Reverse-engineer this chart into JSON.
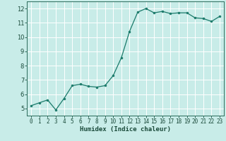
{
  "x": [
    0,
    1,
    2,
    3,
    4,
    5,
    6,
    7,
    8,
    9,
    10,
    11,
    12,
    13,
    14,
    15,
    16,
    17,
    18,
    19,
    20,
    21,
    22,
    23
  ],
  "y": [
    5.2,
    5.4,
    5.6,
    4.9,
    5.7,
    6.6,
    6.7,
    6.55,
    6.5,
    6.6,
    7.3,
    8.55,
    10.4,
    11.75,
    12.0,
    11.7,
    11.8,
    11.65,
    11.7,
    11.7,
    11.35,
    11.3,
    11.1,
    11.45
  ],
  "xlim": [
    -0.5,
    23.5
  ],
  "ylim": [
    4.5,
    12.5
  ],
  "yticks": [
    5,
    6,
    7,
    8,
    9,
    10,
    11,
    12
  ],
  "xticks": [
    0,
    1,
    2,
    3,
    4,
    5,
    6,
    7,
    8,
    9,
    10,
    11,
    12,
    13,
    14,
    15,
    16,
    17,
    18,
    19,
    20,
    21,
    22,
    23
  ],
  "xlabel": "Humidex (Indice chaleur)",
  "line_color": "#1a7a6a",
  "marker_color": "#1a7a6a",
  "bg_color": "#c8ece8",
  "grid_color": "#ffffff",
  "axis_color": "#2a6a5a",
  "tick_color": "#1a5a4a",
  "font_color": "#1a4a3a"
}
